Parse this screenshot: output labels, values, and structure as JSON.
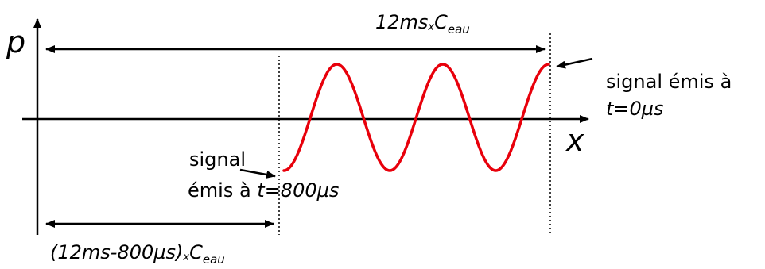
{
  "diagram": {
    "axis_p_label": "p",
    "axis_x_label": "x",
    "top_span": {
      "main": "12ms",
      "times": "x",
      "c": "C",
      "sub": "eau"
    },
    "bottom_span": {
      "main": "(12ms-800µs)",
      "times": "x",
      "c": "C",
      "sub": "eau"
    },
    "right_note": {
      "line1": "signal émis à",
      "line2": "t=0µs"
    },
    "left_note": {
      "line1": "signal",
      "line2_prefix": "émis à ",
      "line2_time": "t=800µs"
    },
    "colors": {
      "signal": "#e8000b",
      "ink": "#000000",
      "background": "#ffffff"
    },
    "signal": {
      "periods": 3,
      "phase_at_start": "minimum",
      "phase_at_end": "maximum"
    }
  }
}
